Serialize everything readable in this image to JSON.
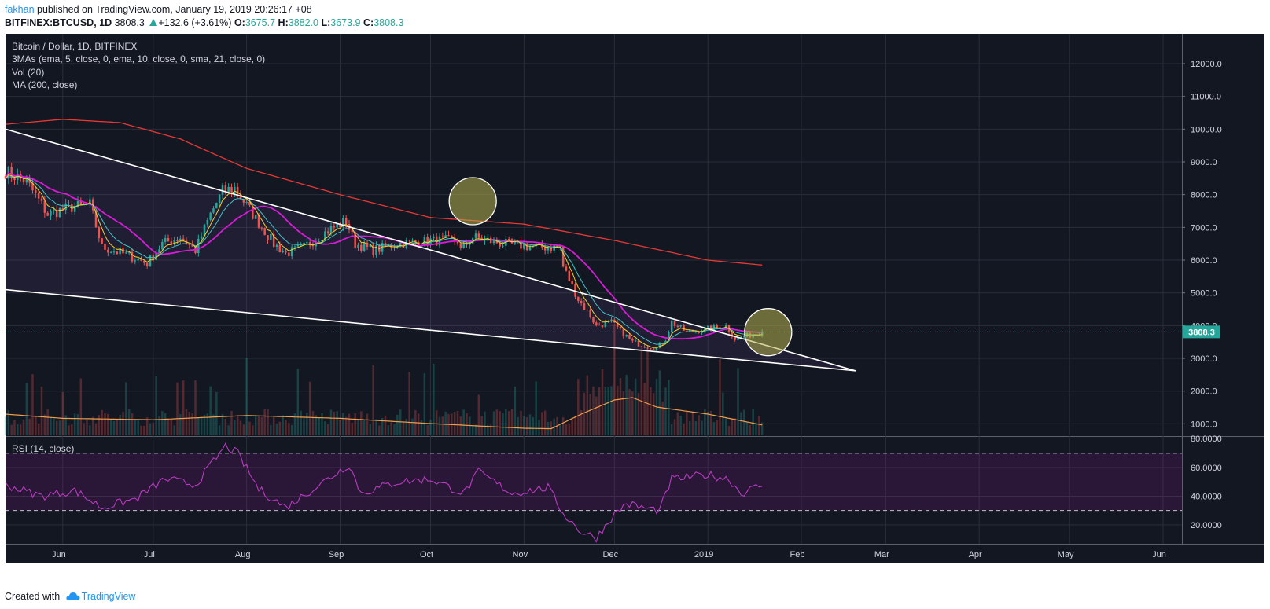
{
  "header": {
    "author": "fakhan",
    "published_text": " published on TradingView.com, January 19, 2019 20:26:17 +08",
    "symbol": "BITFINEX:BTCUSD, 1D",
    "last": "3808.3",
    "change": "+132.6 (+3.61%)",
    "o_label": "O:",
    "o": "3675.7",
    "h_label": "H:",
    "h": "3882.0",
    "l_label": "L:",
    "l": "3673.9",
    "c_label": "C:",
    "c": "3808.3"
  },
  "legend": {
    "line1": "Bitcoin / Dollar, 1D, BITFINEX",
    "line2": "3MAs (ema, 5, close, 0, ema, 10, close, 0, sma, 21, close, 0)",
    "line3": "Vol (20)",
    "line4": "MA (200, close)",
    "rsi": "RSI (14, close)"
  },
  "footer": {
    "created_with": "Created with",
    "brand": "TradingView"
  },
  "colors": {
    "bg": "#131722",
    "grid": "#2a2e39",
    "up": "#26a69a",
    "down": "#ef5350",
    "ma200": "#e53935",
    "ema5": "#f5d026",
    "ema10": "#40c4c4",
    "sma21": "#d81bd8",
    "volma": "#f09d4c",
    "rsi": "#b83bc0",
    "trend": "#ffffff",
    "circle": "#b5b34f"
  },
  "chart_data": [
    {
      "type": "candlestick",
      "x_ticks": [
        "Jun",
        "Jul",
        "Aug",
        "Sep",
        "Oct",
        "Nov",
        "Dec",
        "2019",
        "Feb",
        "Mar",
        "Apr",
        "May",
        "Jun"
      ],
      "y_ticks": [
        "12000.0",
        "11000.0",
        "10000.0",
        "9000.0",
        "8000.0",
        "7000.0",
        "6000.0",
        "5000.0",
        "4000.0",
        "3000.0",
        "2000.0",
        "1000.0"
      ],
      "ylim": [
        800,
        12400
      ],
      "last_price_label": "3808.3",
      "close_keypoints": [
        [
          "2018-05-13",
          8700
        ],
        [
          "2018-05-20",
          8400
        ],
        [
          "2018-05-27",
          7400
        ],
        [
          "2018-06-03",
          7600
        ],
        [
          "2018-06-10",
          7700
        ],
        [
          "2018-06-14",
          6400
        ],
        [
          "2018-06-24",
          6100
        ],
        [
          "2018-06-29",
          5900
        ],
        [
          "2018-07-04",
          6500
        ],
        [
          "2018-07-10",
          6700
        ],
        [
          "2018-07-15",
          6300
        ],
        [
          "2018-07-20",
          7400
        ],
        [
          "2018-07-24",
          8100
        ],
        [
          "2018-07-28",
          8200
        ],
        [
          "2018-08-03",
          7400
        ],
        [
          "2018-08-10",
          6500
        ],
        [
          "2018-08-14",
          6200
        ],
        [
          "2018-08-20",
          6400
        ],
        [
          "2018-08-28",
          6900
        ],
        [
          "2018-09-03",
          7200
        ],
        [
          "2018-09-06",
          6500
        ],
        [
          "2018-09-12",
          6300
        ],
        [
          "2018-09-20",
          6500
        ],
        [
          "2018-10-01",
          6600
        ],
        [
          "2018-10-10",
          6600
        ],
        [
          "2018-10-11",
          6300
        ],
        [
          "2018-10-15",
          6700
        ],
        [
          "2018-10-25",
          6500
        ],
        [
          "2018-11-05",
          6400
        ],
        [
          "2018-11-13",
          6400
        ],
        [
          "2018-11-14",
          5800
        ],
        [
          "2018-11-19",
          4800
        ],
        [
          "2018-11-23",
          4300
        ],
        [
          "2018-11-25",
          4000
        ],
        [
          "2018-11-30",
          4100
        ],
        [
          "2018-12-07",
          3500
        ],
        [
          "2018-12-15",
          3300
        ],
        [
          "2018-12-18",
          3600
        ],
        [
          "2018-12-20",
          4100
        ],
        [
          "2018-12-25",
          3800
        ],
        [
          "2019-01-01",
          3900
        ],
        [
          "2019-01-07",
          4000
        ],
        [
          "2019-01-10",
          3600
        ],
        [
          "2019-01-19",
          3808
        ]
      ],
      "ma200_keypoints": [
        [
          "2018-05-13",
          10150
        ],
        [
          "2018-06-01",
          10300
        ],
        [
          "2018-06-20",
          10200
        ],
        [
          "2018-07-10",
          9700
        ],
        [
          "2018-08-01",
          8800
        ],
        [
          "2018-09-01",
          8000
        ],
        [
          "2018-10-01",
          7300
        ],
        [
          "2018-11-01",
          7100
        ],
        [
          "2018-12-01",
          6600
        ],
        [
          "2019-01-01",
          6000
        ],
        [
          "2019-01-19",
          5850
        ]
      ],
      "upper_trendline": [
        [
          "2018-05-13",
          10000
        ],
        [
          "2019-02-19",
          2620
        ]
      ],
      "lower_trendline": [
        [
          "2018-05-13",
          5100
        ],
        [
          "2019-02-19",
          2620
        ]
      ],
      "highlight_circles": [
        [
          "2018-10-15",
          7800
        ],
        [
          "2019-01-21",
          3800
        ]
      ]
    },
    {
      "type": "line",
      "name": "RSI (14, close)",
      "y_ticks": [
        "80.0000",
        "60.0000",
        "40.0000",
        "20.0000"
      ],
      "ylim": [
        7,
        82
      ],
      "bands": [
        30,
        70
      ],
      "keypoints": [
        [
          "2018-05-13",
          48
        ],
        [
          "2018-05-25",
          40
        ],
        [
          "2018-06-05",
          44
        ],
        [
          "2018-06-14",
          32
        ],
        [
          "2018-06-25",
          38
        ],
        [
          "2018-07-05",
          52
        ],
        [
          "2018-07-15",
          48
        ],
        [
          "2018-07-25",
          75
        ],
        [
          "2018-07-29",
          70
        ],
        [
          "2018-08-05",
          45
        ],
        [
          "2018-08-14",
          32
        ],
        [
          "2018-08-25",
          48
        ],
        [
          "2018-09-04",
          62
        ],
        [
          "2018-09-08",
          42
        ],
        [
          "2018-09-20",
          50
        ],
        [
          "2018-10-01",
          52
        ],
        [
          "2018-10-12",
          42
        ],
        [
          "2018-10-17",
          57
        ],
        [
          "2018-10-28",
          42
        ],
        [
          "2018-11-09",
          46
        ],
        [
          "2018-11-14",
          28
        ],
        [
          "2018-11-20",
          15
        ],
        [
          "2018-11-25",
          11
        ],
        [
          "2018-11-30",
          25
        ],
        [
          "2018-12-05",
          35
        ],
        [
          "2018-12-10",
          32
        ],
        [
          "2018-12-16",
          30
        ],
        [
          "2018-12-20",
          52
        ],
        [
          "2018-12-25",
          53
        ],
        [
          "2019-01-01",
          55
        ],
        [
          "2019-01-08",
          52
        ],
        [
          "2019-01-12",
          42
        ],
        [
          "2019-01-19",
          48
        ]
      ]
    },
    {
      "type": "bar",
      "name": "Vol (20)",
      "volume_ma_keypoints": [
        [
          "2018-05-13",
          0.45
        ],
        [
          "2018-06-01",
          0.36
        ],
        [
          "2018-07-01",
          0.33
        ],
        [
          "2018-08-01",
          0.42
        ],
        [
          "2018-09-01",
          0.36
        ],
        [
          "2018-10-01",
          0.25
        ],
        [
          "2018-11-01",
          0.15
        ],
        [
          "2018-11-10",
          0.14
        ],
        [
          "2018-11-20",
          0.45
        ],
        [
          "2018-12-01",
          0.75
        ],
        [
          "2018-12-07",
          0.8
        ],
        [
          "2018-12-15",
          0.6
        ],
        [
          "2019-01-01",
          0.45
        ],
        [
          "2019-01-19",
          0.22
        ]
      ]
    }
  ]
}
